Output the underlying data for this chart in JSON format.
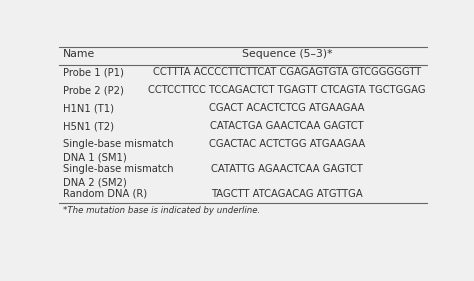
{
  "headers": [
    "Name",
    "Sequence (5–3)*"
  ],
  "rows": [
    [
      "Probe 1 (P1)",
      "CCTTTA ACCCCTTCTTCAT CGAGAGTGTA GTCGGGGGTT"
    ],
    [
      "Probe 2 (P2)",
      "CCTCCTTCC TCCAGACTCT TGAGTT CTCAGTA TGCTGGAG"
    ],
    [
      "H1N1 (T1)",
      "CGACT ACACTCTCG ATGAAGAA"
    ],
    [
      "H5N1 (T2)",
      "CATACTGA GAACTCAA GAGTCT"
    ],
    [
      "Single-base mismatch\nDNA 1 (SM1)",
      "CGACTAC ACTCTGG ATGAAGAA"
    ],
    [
      "Single-base mismatch\nDNA 2 (SM2)",
      "CATATTG AGAACTCAA GAGTCT"
    ],
    [
      "Random DNA (R)",
      "TAGCTT ATCAGACAG ATGTTGA"
    ]
  ],
  "footnote": "*The mutation base is indicated by underline.",
  "bg_color": "#f0f0f0",
  "line_color": "#666666",
  "text_color": "#333333",
  "font_size": 7.2,
  "header_font_size": 7.8
}
